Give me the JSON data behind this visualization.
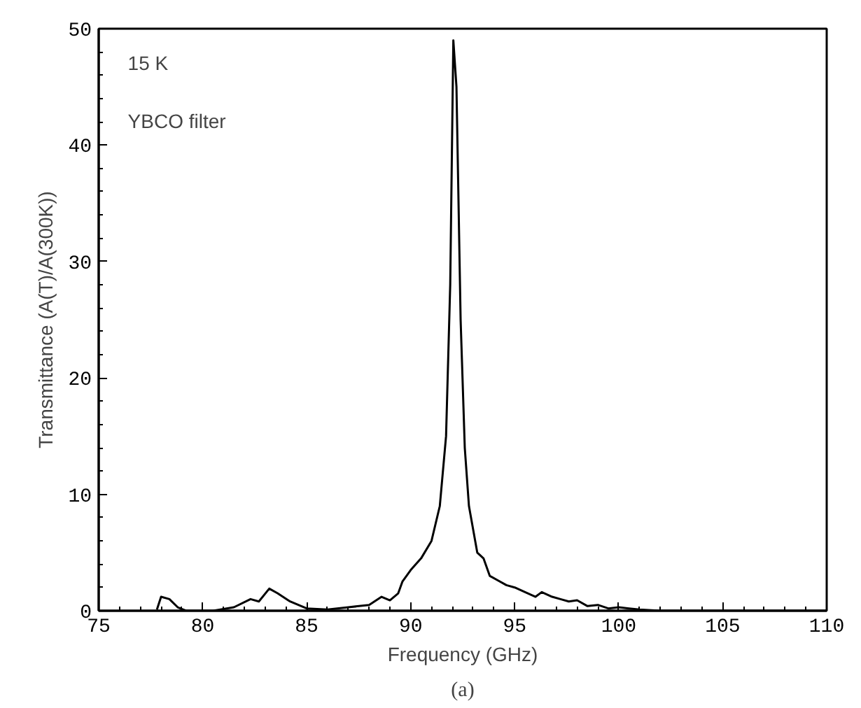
{
  "chart_data": {
    "type": "line",
    "xlabel": "Frequency (GHz)",
    "ylabel": "Transmittance (A(T)/A(300K))",
    "annotations": [
      "15 K",
      "YBCO filter",
      "(a)"
    ],
    "xlim": [
      75,
      110
    ],
    "xticks": [
      75,
      80,
      85,
      90,
      95,
      100,
      105,
      110
    ],
    "ylim": [
      0,
      50
    ],
    "yticks": [
      0,
      10,
      20,
      30,
      40,
      50
    ],
    "grid": false,
    "marker": "none",
    "line_style": "solid",
    "series": [
      {
        "color": "#000000",
        "x": [
          77.8,
          78.0,
          78.4,
          78.8,
          79.2,
          80.5,
          81.5,
          82.3,
          82.7,
          83.2,
          83.6,
          84.2,
          85,
          86,
          87,
          88,
          88.6,
          89,
          89.4,
          89.6,
          90,
          90.5,
          91,
          91.4,
          91.7,
          91.9,
          92.05,
          92.2,
          92.4,
          92.6,
          92.8,
          93,
          93.2,
          93.5,
          93.8,
          94.2,
          94.6,
          95,
          95.5,
          96,
          96.3,
          96.8,
          97.2,
          97.6,
          98,
          98.5,
          99,
          99.5,
          100,
          100.5,
          101,
          102,
          110
        ],
        "values": [
          0.1,
          1.2,
          1.0,
          0.3,
          0.0,
          0.0,
          0.3,
          1.0,
          0.8,
          1.9,
          1.5,
          0.8,
          0.2,
          0.1,
          0.3,
          0.5,
          1.2,
          0.9,
          1.5,
          2.5,
          3.5,
          4.5,
          6,
          9,
          15,
          28,
          49,
          45,
          25,
          14,
          9,
          7,
          5,
          4.5,
          3.0,
          2.6,
          2.2,
          2.0,
          1.6,
          1.2,
          1.6,
          1.2,
          1.0,
          0.8,
          0.9,
          0.4,
          0.5,
          0.2,
          0.3,
          0.2,
          0.1,
          0.0,
          0.0
        ]
      }
    ]
  }
}
